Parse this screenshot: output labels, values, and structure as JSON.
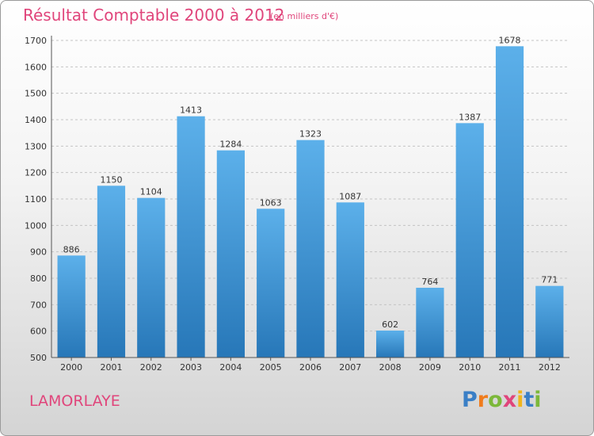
{
  "header": {
    "title": "Résultat Comptable 2000 à 2012",
    "subtitle": "(en milliers d'€)"
  },
  "footer": {
    "place": "LAMORLAYE",
    "logo_letters": [
      "P",
      "r",
      "o",
      "x",
      "i",
      "t",
      "i"
    ],
    "logo_colors": [
      "#3a7fc6",
      "#f07c1c",
      "#7cb83a",
      "#e0457b",
      "#f0b51c",
      "#3a7fc6",
      "#7cb83a"
    ]
  },
  "chart_data": {
    "type": "bar",
    "title": "Résultat Comptable 2000 à 2012",
    "subtitle": "(en milliers d'€)",
    "categories": [
      "2000",
      "2001",
      "2002",
      "2003",
      "2004",
      "2005",
      "2006",
      "2007",
      "2008",
      "2009",
      "2010",
      "2011",
      "2012"
    ],
    "values": [
      886,
      1150,
      1104,
      1413,
      1284,
      1063,
      1323,
      1087,
      602,
      764,
      1387,
      1678,
      771
    ],
    "ylim": [
      500,
      1700
    ],
    "yticks": [
      500,
      600,
      700,
      800,
      900,
      1000,
      1100,
      1200,
      1300,
      1400,
      1500,
      1600,
      1700
    ],
    "grid": true,
    "bar_color": "#4aa0dd"
  }
}
